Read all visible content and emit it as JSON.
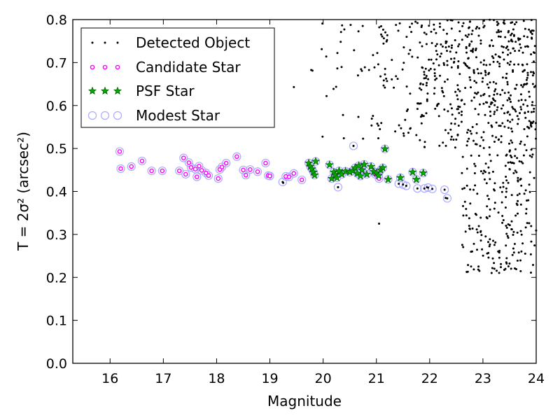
{
  "chart_data": {
    "type": "scatter",
    "xlabel": "Magnitude",
    "ylabel": "T = 2σ² (arcsec²)",
    "xlim": [
      15.3,
      24.0
    ],
    "ylim": [
      0.0,
      0.8
    ],
    "xticks": [
      16,
      17,
      18,
      19,
      20,
      21,
      22,
      23,
      24
    ],
    "yticks": [
      0.0,
      0.1,
      0.2,
      0.3,
      0.4,
      0.5,
      0.6,
      0.7,
      0.8
    ],
    "grid": false,
    "legend_position": "top-left",
    "series": [
      {
        "name": "Detected Object",
        "marker": "dot",
        "color": "#000000",
        "x": [],
        "y": []
      },
      {
        "name": "Candidate Star",
        "marker": "circle",
        "color": "#ff00ff",
        "x": [
          16.18,
          16.2,
          16.4,
          16.6,
          16.78,
          16.98,
          17.3,
          17.38,
          17.42,
          17.48,
          17.52,
          17.6,
          17.63,
          17.67,
          17.72,
          17.8,
          17.85,
          18.03,
          18.06,
          18.1,
          18.18,
          18.38,
          18.5,
          18.55,
          18.63,
          18.77,
          18.92,
          18.97,
          19.0,
          19.3,
          19.36,
          19.45,
          19.6,
          20.98,
          21.05
        ],
        "y": [
          0.493,
          0.453,
          0.458,
          0.471,
          0.448,
          0.448,
          0.448,
          0.478,
          0.44,
          0.467,
          0.456,
          0.452,
          0.434,
          0.459,
          0.449,
          0.443,
          0.437,
          0.43,
          0.451,
          0.457,
          0.466,
          0.481,
          0.45,
          0.438,
          0.451,
          0.446,
          0.466,
          0.437,
          0.436,
          0.435,
          0.434,
          0.442,
          0.427,
          0.44,
          0.43
        ]
      },
      {
        "name": "PSF Star",
        "marker": "star",
        "color": "#00aa00",
        "x": [
          19.73,
          19.76,
          19.79,
          19.82,
          19.84,
          19.86,
          20.12,
          20.16,
          20.2,
          20.23,
          20.26,
          20.3,
          20.35,
          20.42,
          20.5,
          20.56,
          20.6,
          20.64,
          20.67,
          20.7,
          20.73,
          20.77,
          20.82,
          20.9,
          20.95,
          21.0,
          21.04,
          21.08,
          21.12,
          21.16,
          21.22,
          21.45,
          21.68,
          21.75,
          21.88
        ],
        "y": [
          0.466,
          0.458,
          0.452,
          0.445,
          0.438,
          0.47,
          0.462,
          0.43,
          0.445,
          0.438,
          0.432,
          0.448,
          0.44,
          0.447,
          0.445,
          0.448,
          0.455,
          0.442,
          0.46,
          0.436,
          0.45,
          0.463,
          0.44,
          0.458,
          0.446,
          0.443,
          0.437,
          0.45,
          0.455,
          0.499,
          0.428,
          0.432,
          0.445,
          0.428,
          0.443
        ]
      },
      {
        "name": "Modest Star",
        "marker": "open-circle",
        "color": "#aaaaff",
        "x": [
          19.24,
          20.28,
          20.57,
          21.42,
          21.5,
          21.56,
          21.77,
          21.9,
          21.97,
          22.05,
          22.28,
          22.33
        ],
        "y": [
          0.422,
          0.41,
          0.506,
          0.418,
          0.416,
          0.413,
          0.407,
          0.407,
          0.409,
          0.406,
          0.404,
          0.384
        ]
      }
    ]
  }
}
